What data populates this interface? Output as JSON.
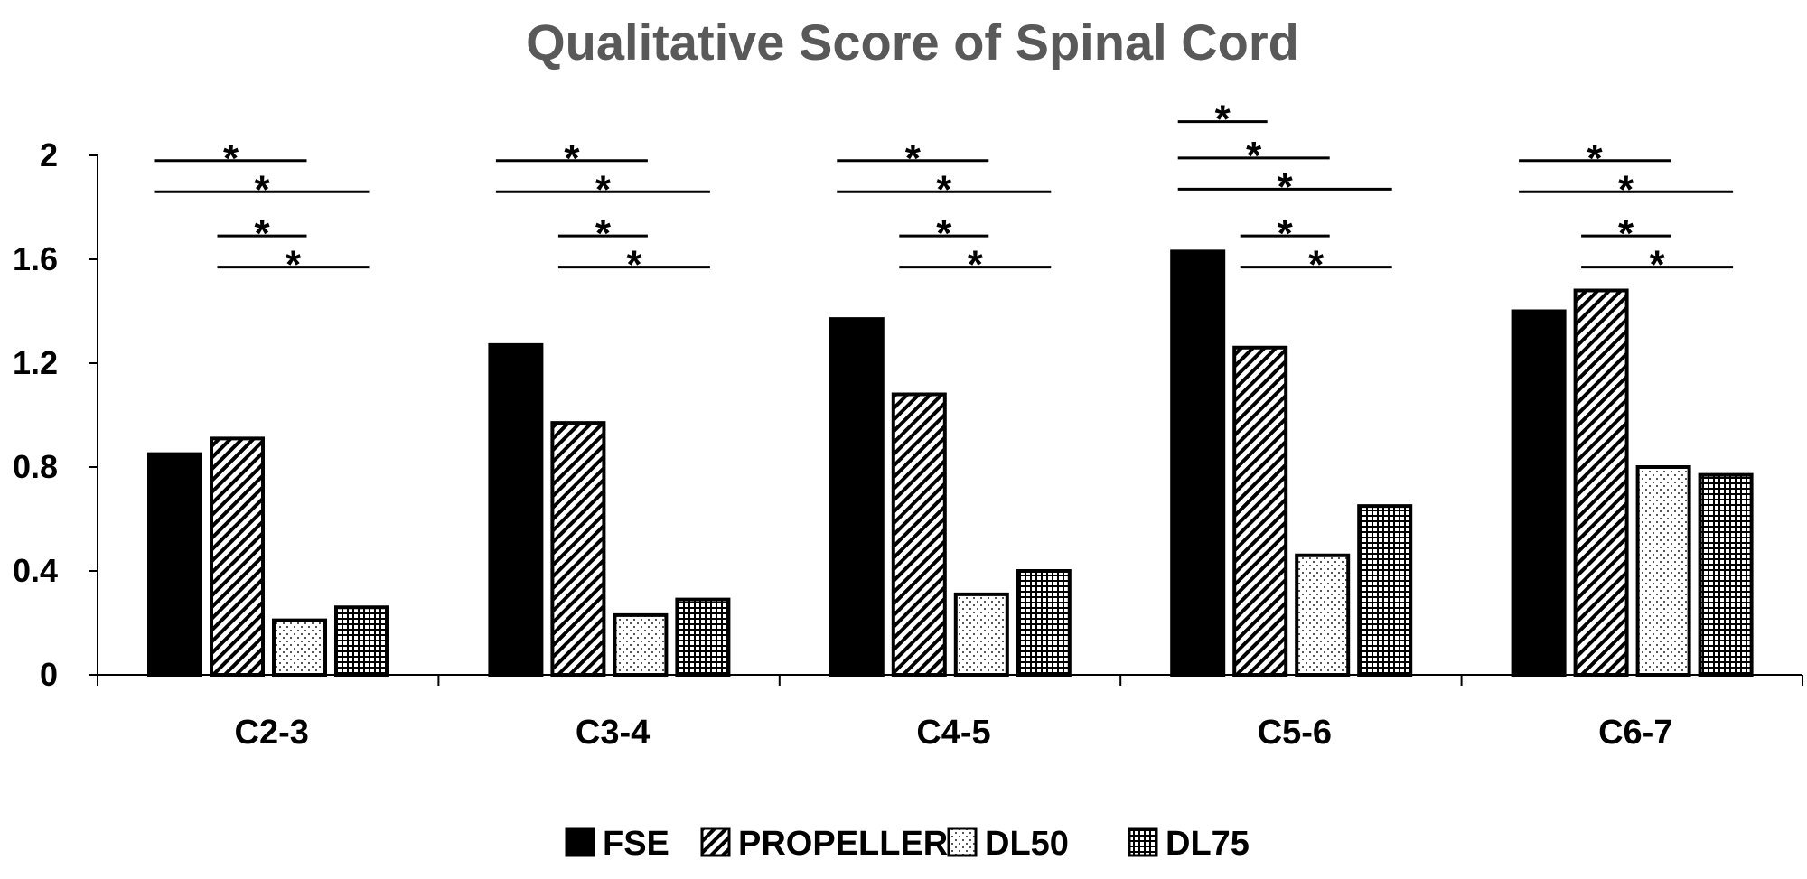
{
  "chart_data": {
    "type": "bar",
    "title": "Qualitative Score of Spinal Cord",
    "xlabel": "",
    "ylabel": "",
    "ylim": [
      0,
      2
    ],
    "yticks": [
      0,
      0.4,
      0.8,
      1.2,
      1.6,
      2
    ],
    "ytick_labels": [
      "0",
      "0.4",
      "0.8",
      "1.2",
      "1.6",
      "2"
    ],
    "categories": [
      "C2-3",
      "C3-4",
      "C4-5",
      "C5-6",
      "C6-7"
    ],
    "series": [
      {
        "name": "FSE",
        "pattern": "solid",
        "values": [
          0.85,
          1.27,
          1.37,
          1.63,
          1.4
        ]
      },
      {
        "name": "PROPELLER",
        "pattern": "diagonal",
        "values": [
          0.91,
          0.97,
          1.08,
          1.26,
          1.48
        ]
      },
      {
        "name": "DL50",
        "pattern": "dots",
        "values": [
          0.21,
          0.23,
          0.31,
          0.46,
          0.8
        ]
      },
      {
        "name": "DL75",
        "pattern": "grid",
        "values": [
          0.26,
          0.29,
          0.4,
          0.65,
          0.77
        ]
      }
    ],
    "legend_position": "bottom-center",
    "significance_marker": "*",
    "significance": [
      {
        "category": "C2-3",
        "pairs": [
          [
            "FSE",
            "DL50"
          ],
          [
            "FSE",
            "DL75"
          ],
          [
            "PROPELLER",
            "DL50"
          ],
          [
            "PROPELLER",
            "DL75"
          ]
        ]
      },
      {
        "category": "C3-4",
        "pairs": [
          [
            "FSE",
            "DL50"
          ],
          [
            "FSE",
            "DL75"
          ],
          [
            "PROPELLER",
            "DL50"
          ],
          [
            "PROPELLER",
            "DL75"
          ]
        ]
      },
      {
        "category": "C4-5",
        "pairs": [
          [
            "FSE",
            "DL50"
          ],
          [
            "FSE",
            "DL75"
          ],
          [
            "PROPELLER",
            "DL50"
          ],
          [
            "PROPELLER",
            "DL75"
          ]
        ]
      },
      {
        "category": "C5-6",
        "pairs": [
          [
            "FSE",
            "PROPELLER"
          ],
          [
            "FSE",
            "DL50"
          ],
          [
            "FSE",
            "DL75"
          ],
          [
            "PROPELLER",
            "DL50"
          ],
          [
            "PROPELLER",
            "DL75"
          ]
        ]
      },
      {
        "category": "C6-7",
        "pairs": [
          [
            "FSE",
            "DL50"
          ],
          [
            "FSE",
            "DL75"
          ],
          [
            "PROPELLER",
            "DL50"
          ],
          [
            "PROPELLER",
            "DL75"
          ]
        ]
      }
    ],
    "colors": {
      "title": "#595959",
      "bar_stroke": "#000000",
      "bar_fill": "#000000"
    }
  }
}
